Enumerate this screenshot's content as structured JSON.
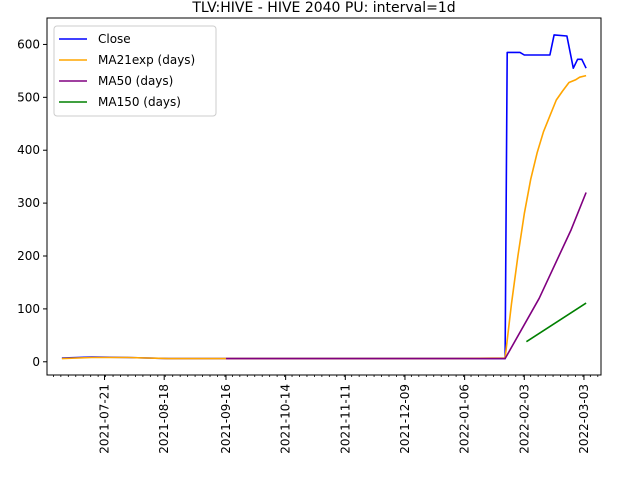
{
  "chart_data": {
    "type": "line",
    "title": "TLV:HIVE - HIVE 2040 PU: interval=1d",
    "xlabel": "",
    "ylabel": "",
    "x_tick_labels": [
      "2021-07-21",
      "2021-08-18",
      "2021-09-16",
      "2021-10-14",
      "2021-11-11",
      "2021-12-09",
      "2022-01-06",
      "2022-02-03",
      "2022-03-03"
    ],
    "y_tick_labels": [
      "0",
      "100",
      "200",
      "300",
      "400",
      "500",
      "600"
    ],
    "ylim": [
      -25,
      650
    ],
    "grid": false,
    "legend_position": "top-left",
    "series": [
      {
        "name": "Close",
        "color": "#0000ff",
        "points": [
          [
            "2021-07-01",
            7
          ],
          [
            "2021-07-15",
            9
          ],
          [
            "2021-08-01",
            8
          ],
          [
            "2021-08-20",
            6
          ],
          [
            "2021-09-10",
            6
          ],
          [
            "2021-10-01",
            6
          ],
          [
            "2021-11-01",
            6
          ],
          [
            "2021-12-01",
            6
          ],
          [
            "2022-01-01",
            6
          ],
          [
            "2022-01-25",
            6
          ],
          [
            "2022-01-26",
            585
          ],
          [
            "2022-02-01",
            585
          ],
          [
            "2022-02-03",
            580
          ],
          [
            "2022-02-15",
            580
          ],
          [
            "2022-02-17",
            618
          ],
          [
            "2022-02-23",
            616
          ],
          [
            "2022-02-26",
            555
          ],
          [
            "2022-02-28",
            572
          ],
          [
            "2022-03-02",
            572
          ],
          [
            "2022-03-04",
            555
          ]
        ]
      },
      {
        "name": "MA21exp (days)",
        "color": "#ffa500",
        "points": [
          [
            "2021-07-01",
            6
          ],
          [
            "2021-07-15",
            8
          ],
          [
            "2021-08-01",
            8
          ],
          [
            "2021-08-20",
            6
          ],
          [
            "2021-09-10",
            6
          ],
          [
            "2021-10-01",
            6
          ],
          [
            "2021-11-01",
            6
          ],
          [
            "2021-12-01",
            6
          ],
          [
            "2022-01-01",
            6
          ],
          [
            "2022-01-25",
            7
          ],
          [
            "2022-01-28",
            110
          ],
          [
            "2022-01-31",
            200
          ],
          [
            "2022-02-03",
            280
          ],
          [
            "2022-02-06",
            345
          ],
          [
            "2022-02-09",
            395
          ],
          [
            "2022-02-12",
            435
          ],
          [
            "2022-02-15",
            465
          ],
          [
            "2022-02-18",
            495
          ],
          [
            "2022-02-21",
            512
          ],
          [
            "2022-02-24",
            528
          ],
          [
            "2022-02-27",
            533
          ],
          [
            "2022-03-01",
            538
          ],
          [
            "2022-03-04",
            541
          ]
        ]
      },
      {
        "name": "MA50 (days)",
        "color": "#800080",
        "points": [
          [
            "2021-09-16",
            6
          ],
          [
            "2021-10-01",
            6
          ],
          [
            "2021-11-01",
            6
          ],
          [
            "2021-12-01",
            6
          ],
          [
            "2022-01-01",
            6
          ],
          [
            "2022-01-25",
            6
          ],
          [
            "2022-02-10",
            120
          ],
          [
            "2022-02-25",
            250
          ],
          [
            "2022-03-04",
            320
          ]
        ]
      },
      {
        "name": "MA150 (days)",
        "color": "#008000",
        "points": [
          [
            "2022-02-04",
            38
          ],
          [
            "2022-03-04",
            111
          ]
        ]
      }
    ]
  }
}
